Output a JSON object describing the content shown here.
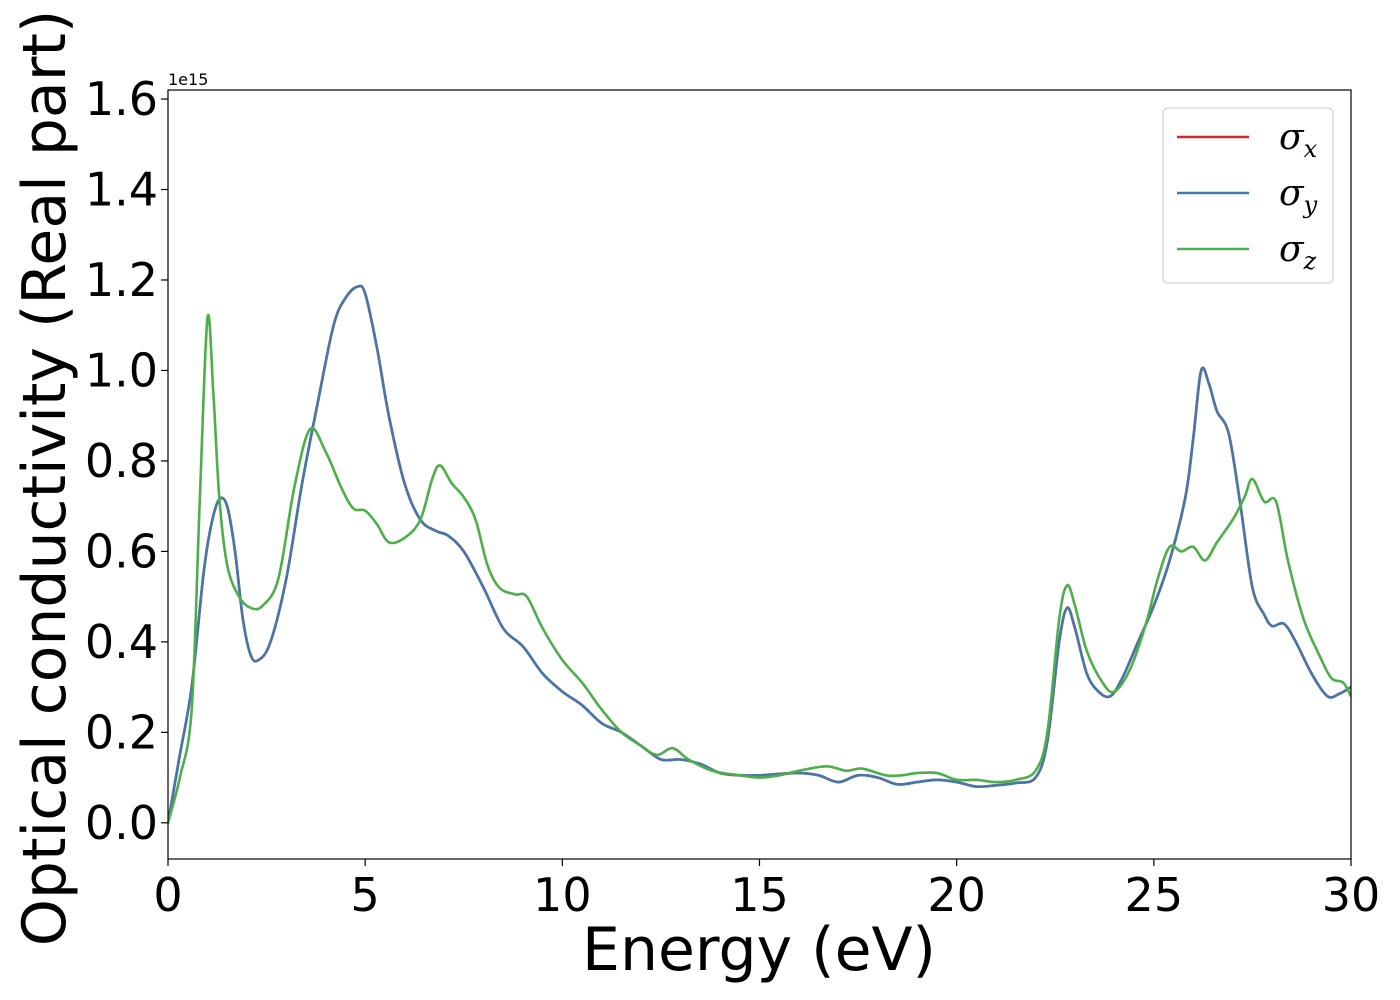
{
  "chart_data": {
    "type": "line",
    "xlabel": "Energy (eV)",
    "ylabel": "Optical conductivity (Real part)",
    "y_offset_text": "1e15",
    "xlim": [
      0,
      30
    ],
    "ylim": [
      -0.08,
      1.62
    ],
    "xticks": [
      0,
      5,
      10,
      15,
      20,
      25,
      30
    ],
    "xtick_labels": [
      "0",
      "5",
      "10",
      "15",
      "20",
      "25",
      "30"
    ],
    "yticks": [
      0.0,
      0.2,
      0.4,
      0.6,
      0.8,
      1.0,
      1.2,
      1.4,
      1.6
    ],
    "ytick_labels": [
      "0.0",
      "0.2",
      "0.4",
      "0.6",
      "0.8",
      "1.0",
      "1.2",
      "1.4",
      "1.6"
    ],
    "grid": false,
    "legend_position": "top-right",
    "series": [
      {
        "name": "σx",
        "symbol": "σ",
        "subscript": "x",
        "color": "#d62728",
        "points": [
          [
            0,
            0
          ],
          [
            0.3,
            0.15
          ],
          [
            0.6,
            0.3
          ],
          [
            0.9,
            0.55
          ],
          [
            1.1,
            0.66
          ],
          [
            1.3,
            0.715
          ],
          [
            1.5,
            0.7
          ],
          [
            1.7,
            0.6
          ],
          [
            1.9,
            0.45
          ],
          [
            2.1,
            0.37
          ],
          [
            2.3,
            0.36
          ],
          [
            2.6,
            0.4
          ],
          [
            3.0,
            0.54
          ],
          [
            3.4,
            0.75
          ],
          [
            3.8,
            0.93
          ],
          [
            4.2,
            1.1
          ],
          [
            4.5,
            1.16
          ],
          [
            4.8,
            1.185
          ],
          [
            5.0,
            1.17
          ],
          [
            5.3,
            1.05
          ],
          [
            5.6,
            0.9
          ],
          [
            6.0,
            0.75
          ],
          [
            6.4,
            0.67
          ],
          [
            6.8,
            0.645
          ],
          [
            7.1,
            0.635
          ],
          [
            7.5,
            0.6
          ],
          [
            8.0,
            0.52
          ],
          [
            8.5,
            0.43
          ],
          [
            9.0,
            0.39
          ],
          [
            9.5,
            0.33
          ],
          [
            10.0,
            0.29
          ],
          [
            10.5,
            0.26
          ],
          [
            11.0,
            0.22
          ],
          [
            11.5,
            0.2
          ],
          [
            12.0,
            0.17
          ],
          [
            12.5,
            0.14
          ],
          [
            13.0,
            0.14
          ],
          [
            13.5,
            0.13
          ],
          [
            14.0,
            0.11
          ],
          [
            14.5,
            0.105
          ],
          [
            15.0,
            0.105
          ],
          [
            15.5,
            0.108
          ],
          [
            16.0,
            0.11
          ],
          [
            16.5,
            0.105
          ],
          [
            17.0,
            0.09
          ],
          [
            17.5,
            0.105
          ],
          [
            18.0,
            0.1
          ],
          [
            18.5,
            0.085
          ],
          [
            19.0,
            0.09
          ],
          [
            19.5,
            0.095
          ],
          [
            20.0,
            0.09
          ],
          [
            20.5,
            0.08
          ],
          [
            21.0,
            0.083
          ],
          [
            21.5,
            0.088
          ],
          [
            22.0,
            0.1
          ],
          [
            22.3,
            0.18
          ],
          [
            22.6,
            0.4
          ],
          [
            22.8,
            0.475
          ],
          [
            23.0,
            0.43
          ],
          [
            23.3,
            0.33
          ],
          [
            23.6,
            0.29
          ],
          [
            23.9,
            0.28
          ],
          [
            24.2,
            0.32
          ],
          [
            24.6,
            0.4
          ],
          [
            25.0,
            0.48
          ],
          [
            25.4,
            0.58
          ],
          [
            25.8,
            0.72
          ],
          [
            26.0,
            0.85
          ],
          [
            26.2,
            1.0
          ],
          [
            26.4,
            0.97
          ],
          [
            26.6,
            0.91
          ],
          [
            26.9,
            0.86
          ],
          [
            27.2,
            0.7
          ],
          [
            27.5,
            0.52
          ],
          [
            27.8,
            0.46
          ],
          [
            28.0,
            0.435
          ],
          [
            28.3,
            0.44
          ],
          [
            28.6,
            0.4
          ],
          [
            29.0,
            0.33
          ],
          [
            29.4,
            0.28
          ],
          [
            29.7,
            0.285
          ],
          [
            30.0,
            0.3
          ]
        ]
      },
      {
        "name": "σy",
        "symbol": "σ",
        "subscript": "y",
        "color": "#4477aa",
        "points": [
          [
            0,
            0
          ],
          [
            0.3,
            0.15
          ],
          [
            0.6,
            0.3
          ],
          [
            0.9,
            0.55
          ],
          [
            1.1,
            0.66
          ],
          [
            1.3,
            0.715
          ],
          [
            1.5,
            0.7
          ],
          [
            1.7,
            0.6
          ],
          [
            1.9,
            0.45
          ],
          [
            2.1,
            0.37
          ],
          [
            2.3,
            0.36
          ],
          [
            2.6,
            0.4
          ],
          [
            3.0,
            0.54
          ],
          [
            3.4,
            0.75
          ],
          [
            3.8,
            0.93
          ],
          [
            4.2,
            1.1
          ],
          [
            4.5,
            1.16
          ],
          [
            4.8,
            1.185
          ],
          [
            5.0,
            1.17
          ],
          [
            5.3,
            1.05
          ],
          [
            5.6,
            0.9
          ],
          [
            6.0,
            0.75
          ],
          [
            6.4,
            0.67
          ],
          [
            6.8,
            0.645
          ],
          [
            7.1,
            0.635
          ],
          [
            7.5,
            0.6
          ],
          [
            8.0,
            0.52
          ],
          [
            8.5,
            0.43
          ],
          [
            9.0,
            0.39
          ],
          [
            9.5,
            0.33
          ],
          [
            10.0,
            0.29
          ],
          [
            10.5,
            0.26
          ],
          [
            11.0,
            0.22
          ],
          [
            11.5,
            0.2
          ],
          [
            12.0,
            0.17
          ],
          [
            12.5,
            0.14
          ],
          [
            13.0,
            0.14
          ],
          [
            13.5,
            0.13
          ],
          [
            14.0,
            0.11
          ],
          [
            14.5,
            0.105
          ],
          [
            15.0,
            0.105
          ],
          [
            15.5,
            0.108
          ],
          [
            16.0,
            0.11
          ],
          [
            16.5,
            0.105
          ],
          [
            17.0,
            0.09
          ],
          [
            17.5,
            0.105
          ],
          [
            18.0,
            0.1
          ],
          [
            18.5,
            0.085
          ],
          [
            19.0,
            0.09
          ],
          [
            19.5,
            0.095
          ],
          [
            20.0,
            0.09
          ],
          [
            20.5,
            0.08
          ],
          [
            21.0,
            0.083
          ],
          [
            21.5,
            0.088
          ],
          [
            22.0,
            0.1
          ],
          [
            22.3,
            0.18
          ],
          [
            22.6,
            0.4
          ],
          [
            22.8,
            0.475
          ],
          [
            23.0,
            0.43
          ],
          [
            23.3,
            0.33
          ],
          [
            23.6,
            0.29
          ],
          [
            23.9,
            0.28
          ],
          [
            24.2,
            0.32
          ],
          [
            24.6,
            0.4
          ],
          [
            25.0,
            0.48
          ],
          [
            25.4,
            0.58
          ],
          [
            25.8,
            0.72
          ],
          [
            26.0,
            0.85
          ],
          [
            26.2,
            1.0
          ],
          [
            26.4,
            0.97
          ],
          [
            26.6,
            0.91
          ],
          [
            26.9,
            0.86
          ],
          [
            27.2,
            0.7
          ],
          [
            27.5,
            0.52
          ],
          [
            27.8,
            0.46
          ],
          [
            28.0,
            0.435
          ],
          [
            28.3,
            0.44
          ],
          [
            28.6,
            0.4
          ],
          [
            29.0,
            0.33
          ],
          [
            29.4,
            0.28
          ],
          [
            29.7,
            0.285
          ],
          [
            30.0,
            0.3
          ]
        ]
      },
      {
        "name": "σz",
        "symbol": "σ",
        "subscript": "z",
        "color": "#4daf4a",
        "points": [
          [
            0,
            0
          ],
          [
            0.3,
            0.1
          ],
          [
            0.6,
            0.25
          ],
          [
            0.8,
            0.7
          ],
          [
            1.0,
            1.115
          ],
          [
            1.15,
            0.95
          ],
          [
            1.3,
            0.72
          ],
          [
            1.5,
            0.57
          ],
          [
            1.8,
            0.5
          ],
          [
            2.1,
            0.475
          ],
          [
            2.4,
            0.48
          ],
          [
            2.8,
            0.54
          ],
          [
            3.2,
            0.74
          ],
          [
            3.6,
            0.87
          ],
          [
            4.0,
            0.82
          ],
          [
            4.4,
            0.74
          ],
          [
            4.7,
            0.695
          ],
          [
            5.0,
            0.69
          ],
          [
            5.3,
            0.66
          ],
          [
            5.6,
            0.62
          ],
          [
            6.0,
            0.63
          ],
          [
            6.4,
            0.67
          ],
          [
            6.7,
            0.76
          ],
          [
            6.9,
            0.79
          ],
          [
            7.2,
            0.75
          ],
          [
            7.5,
            0.72
          ],
          [
            7.8,
            0.67
          ],
          [
            8.1,
            0.57
          ],
          [
            8.4,
            0.52
          ],
          [
            8.8,
            0.505
          ],
          [
            9.1,
            0.5
          ],
          [
            9.5,
            0.43
          ],
          [
            10.0,
            0.36
          ],
          [
            10.5,
            0.31
          ],
          [
            11.0,
            0.25
          ],
          [
            11.5,
            0.2
          ],
          [
            12.0,
            0.17
          ],
          [
            12.4,
            0.15
          ],
          [
            12.8,
            0.165
          ],
          [
            13.2,
            0.14
          ],
          [
            13.8,
            0.115
          ],
          [
            14.5,
            0.105
          ],
          [
            15.0,
            0.1
          ],
          [
            15.5,
            0.105
          ],
          [
            16.0,
            0.115
          ],
          [
            16.7,
            0.125
          ],
          [
            17.2,
            0.115
          ],
          [
            17.6,
            0.12
          ],
          [
            18.2,
            0.105
          ],
          [
            18.6,
            0.105
          ],
          [
            19.0,
            0.11
          ],
          [
            19.5,
            0.11
          ],
          [
            20.0,
            0.095
          ],
          [
            20.5,
            0.095
          ],
          [
            21.0,
            0.09
          ],
          [
            21.5,
            0.095
          ],
          [
            22.0,
            0.115
          ],
          [
            22.3,
            0.2
          ],
          [
            22.6,
            0.45
          ],
          [
            22.8,
            0.525
          ],
          [
            23.0,
            0.48
          ],
          [
            23.3,
            0.38
          ],
          [
            23.7,
            0.31
          ],
          [
            24.0,
            0.29
          ],
          [
            24.4,
            0.34
          ],
          [
            24.8,
            0.44
          ],
          [
            25.1,
            0.54
          ],
          [
            25.4,
            0.61
          ],
          [
            25.7,
            0.6
          ],
          [
            26.0,
            0.61
          ],
          [
            26.3,
            0.58
          ],
          [
            26.6,
            0.62
          ],
          [
            27.0,
            0.67
          ],
          [
            27.3,
            0.72
          ],
          [
            27.5,
            0.76
          ],
          [
            27.8,
            0.71
          ],
          [
            28.1,
            0.71
          ],
          [
            28.4,
            0.58
          ],
          [
            28.8,
            0.45
          ],
          [
            29.2,
            0.37
          ],
          [
            29.5,
            0.32
          ],
          [
            29.8,
            0.31
          ],
          [
            30.0,
            0.28
          ]
        ]
      }
    ]
  }
}
